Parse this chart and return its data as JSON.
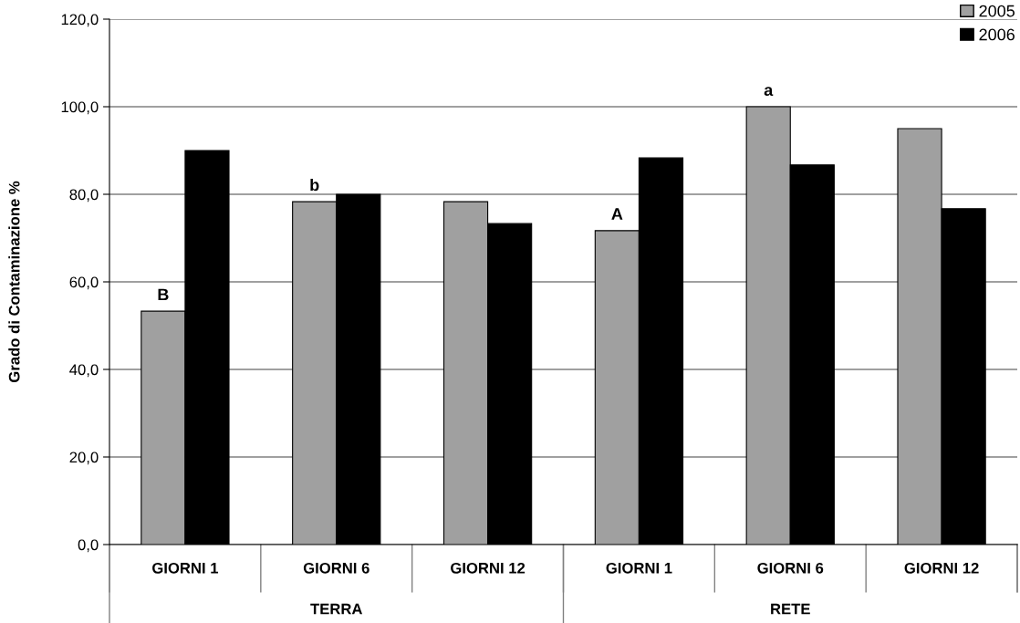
{
  "chart_data": {
    "type": "bar",
    "ylabel": "Grado di Contaminazione %",
    "categories": [
      "GIORNI 1",
      "GIORNI 6",
      "GIORNI 12",
      "GIORNI 1",
      "GIORNI 6",
      "GIORNI 12"
    ],
    "series": [
      {
        "name": "2005",
        "color": "#a0a0a0",
        "values": [
          53.3,
          78.3,
          78.3,
          71.7,
          100.0,
          95.0
        ],
        "value_labels": [
          "B",
          "b",
          null,
          "A",
          "a",
          null
        ]
      },
      {
        "name": "2006",
        "color": "#000000",
        "values": [
          90.0,
          80.0,
          73.3,
          88.3,
          86.7,
          76.7
        ]
      }
    ],
    "ylim": [
      0,
      120
    ],
    "yticks": [
      {
        "value": 0,
        "label": "0,0"
      },
      {
        "value": 20,
        "label": "20,0"
      },
      {
        "value": 40,
        "label": "40,0"
      },
      {
        "value": 60,
        "label": "60,0"
      },
      {
        "value": 80,
        "label": "80,0"
      },
      {
        "value": 100,
        "label": "100,0"
      },
      {
        "value": 120,
        "label": "120,0"
      }
    ],
    "annotations": [
      "TERRA",
      "RETE"
    ],
    "grid": "y",
    "legend": "top right"
  }
}
